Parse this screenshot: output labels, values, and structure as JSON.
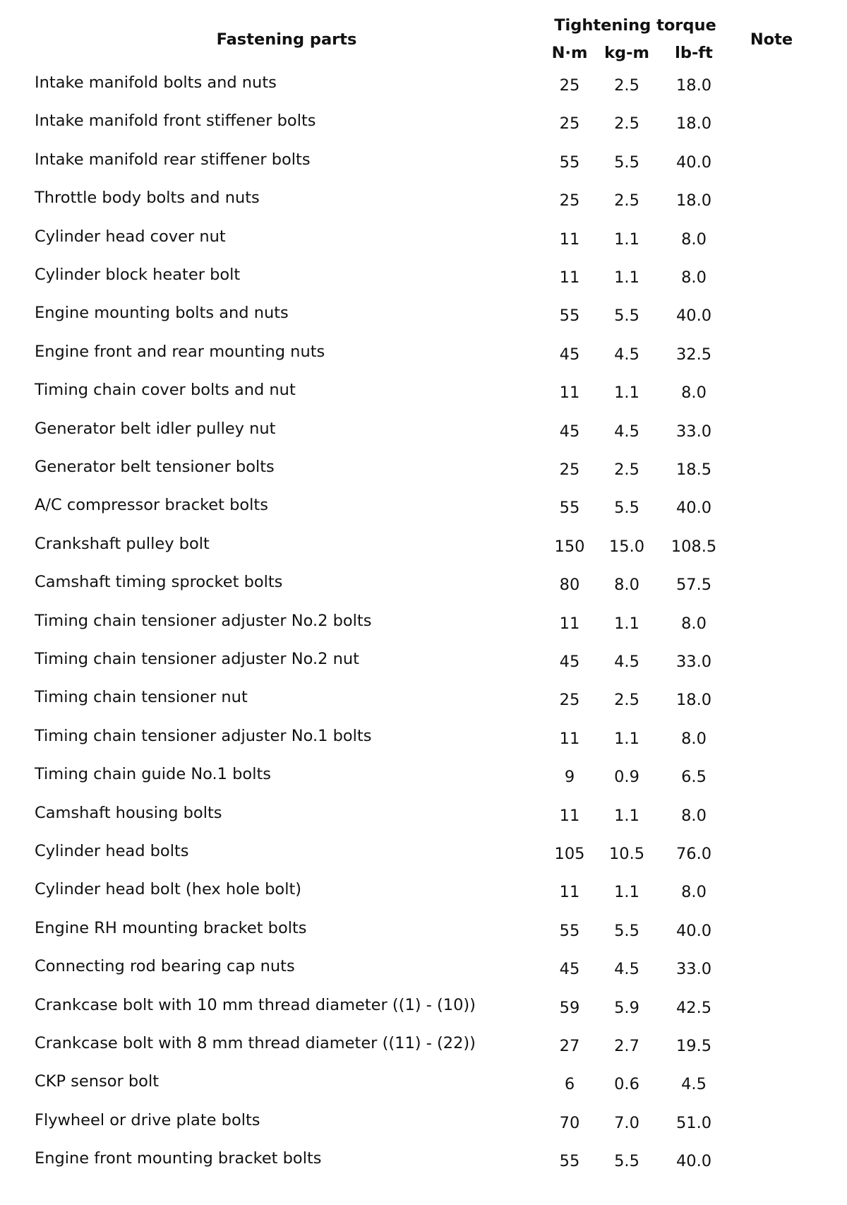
{
  "header": {
    "parts": "Fastening parts",
    "torque": "Tightening torque",
    "units": [
      "N·m",
      "kg-m",
      "lb-ft"
    ],
    "note": "Note"
  },
  "rows": [
    [
      "Intake manifold bolts and nuts",
      "25",
      "2.5",
      "18.0"
    ],
    [
      "Intake manifold front stiffener bolts",
      "25",
      "2.5",
      "18.0"
    ],
    [
      "Intake manifold rear stiffener bolts",
      "55",
      "5.5",
      "40.0"
    ],
    [
      "Throttle body bolts and nuts",
      "25",
      "2.5",
      "18.0"
    ],
    [
      "Cylinder head cover nut",
      "11",
      "1.1",
      "8.0"
    ],
    [
      "Cylinder block heater bolt",
      "11",
      "1.1",
      "8.0"
    ],
    [
      "Engine mounting bolts and nuts",
      "55",
      "5.5",
      "40.0"
    ],
    [
      "Engine front and rear mounting nuts",
      "45",
      "4.5",
      "32.5"
    ],
    [
      "Timing chain cover bolts and nut",
      "11",
      "1.1",
      "8.0"
    ],
    [
      "Generator belt idler pulley nut",
      "45",
      "4.5",
      "33.0"
    ],
    [
      "Generator belt tensioner bolts",
      "25",
      "2.5",
      "18.5"
    ],
    [
      "A/C compressor bracket bolts",
      "55",
      "5.5",
      "40.0"
    ],
    [
      "Crankshaft pulley bolt",
      "150",
      "15.0",
      "108.5"
    ],
    [
      "Camshaft timing sprocket bolts",
      "80",
      "8.0",
      "57.5"
    ],
    [
      "Timing chain tensioner adjuster No.2 bolts",
      "11",
      "1.1",
      "8.0"
    ],
    [
      "Timing chain tensioner adjuster No.2 nut",
      "45",
      "4.5",
      "33.0"
    ],
    [
      "Timing chain tensioner nut",
      "25",
      "2.5",
      "18.0"
    ],
    [
      "Timing chain tensioner adjuster No.1 bolts",
      "11",
      "1.1",
      "8.0"
    ],
    [
      "Timing chain guide No.1 bolts",
      "9",
      "0.9",
      "6.5"
    ],
    [
      "Camshaft housing bolts",
      "11",
      "1.1",
      "8.0"
    ],
    [
      "Cylinder head bolts",
      "105",
      "10.5",
      "76.0"
    ],
    [
      "Cylinder head bolt (hex hole bolt)",
      "11",
      "1.1",
      "8.0"
    ],
    [
      "Engine RH mounting bracket bolts",
      "55",
      "5.5",
      "40.0"
    ],
    [
      "Connecting rod bearing cap nuts",
      "45",
      "4.5",
      "33.0"
    ],
    [
      "Crankcase bolt with 10 mm thread diameter ((1) - (10))",
      "59",
      "5.9",
      "42.5"
    ],
    [
      "Crankcase bolt with 8 mm thread diameter ((11) - (22))",
      "27",
      "2.7",
      "19.5"
    ],
    [
      "CKP sensor bolt",
      "6",
      "0.6",
      "4.5"
    ],
    [
      "Flywheel or drive plate bolts",
      "70",
      "7.0",
      "51.0"
    ],
    [
      "Engine front mounting bracket bolts",
      "55",
      "5.5",
      "40.0"
    ]
  ]
}
